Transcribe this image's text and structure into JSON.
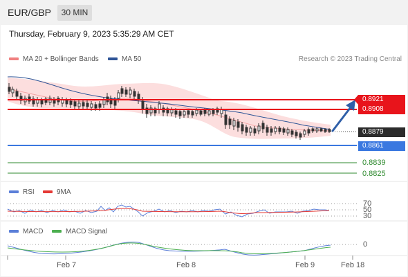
{
  "header": {
    "symbol": "EUR/GBP",
    "timeframe": "30 MIN",
    "datetime": "Thursday, February 9, 2023 5:35:29 AM CET"
  },
  "legend_main": {
    "ma20_label": "MA 20 + Bollinger Bands",
    "ma50_label": "MA 50",
    "credit": "Research © 2023 Trading Central"
  },
  "levels": {
    "r2": "0.8921",
    "r1": "0.8908",
    "last": "0.8879",
    "s1": "0.8861",
    "s2": "0.8839",
    "s3": "0.8825"
  },
  "rsi": {
    "label": "RSI",
    "ma_label": "9MA",
    "ticks": [
      "70",
      "50",
      "30"
    ]
  },
  "macd": {
    "label": "MACD",
    "signal_label": "MACD Signal",
    "tick": "0"
  },
  "x_axis": {
    "labels": [
      "Feb 7",
      "Feb 8",
      "Feb 9",
      "Feb 18"
    ]
  },
  "colors": {
    "resistance": "#e8141b",
    "support": "#3a78e0",
    "last_price": "#222222",
    "green_levels": "#2e8a2e",
    "ma20": "#f08080",
    "ma50": "#2f5597",
    "rsi": "#5b7fd8",
    "rsi_ma": "#e53935",
    "macd": "#5b7fd8",
    "macd_signal": "#4caf50",
    "arrow": "#2f5fa8"
  },
  "icons": {
    "arrow": "up-right-arrow-icon"
  }
}
